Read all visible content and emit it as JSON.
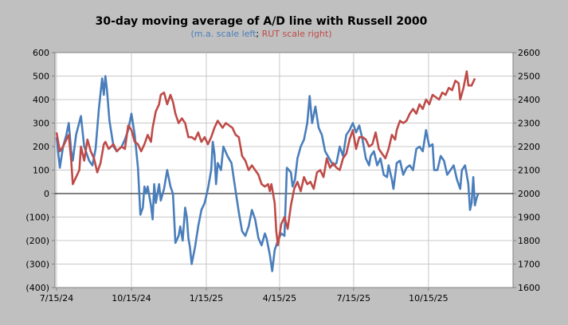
{
  "chart_data": {
    "type": "line",
    "title": "30-day moving average of A/D line with Russell 2000",
    "subtitle_parts": [
      {
        "text": "(",
        "color": "#4a7ebb"
      },
      {
        "text": "m.a. scale left",
        "color": "#4a7ebb"
      },
      {
        "text": "; ",
        "color": "#000000"
      },
      {
        "text": "RUT scale right",
        "color": "#be4b48"
      },
      {
        "text": ")",
        "color": "#be4b48"
      }
    ],
    "x_ticks": [
      "7/15/24",
      "10/15/24",
      "1/15/25",
      "4/15/25",
      "7/15/25",
      "10/15/25"
    ],
    "x_tick_pos": [
      0,
      92,
      184,
      274,
      365,
      457
    ],
    "x_range": [
      0,
      509
    ],
    "y_left": {
      "range": [
        -400,
        600
      ],
      "ticks": [
        600,
        500,
        400,
        300,
        200,
        100,
        0,
        -100,
        -200,
        -300,
        -400
      ],
      "tick_labels": [
        "600",
        "500",
        "400",
        "300",
        "200",
        "100",
        "0",
        "(100)",
        "(200)",
        "(300)",
        "(400)"
      ]
    },
    "y_right": {
      "range": [
        1600,
        2600
      ],
      "ticks": [
        2600,
        2500,
        2400,
        2300,
        2200,
        2100,
        2000,
        1900,
        1800,
        1700,
        1600
      ],
      "tick_labels": [
        "2600",
        "2500",
        "2400",
        "2300",
        "2200",
        "2100",
        "2000",
        "1900",
        "1800",
        "1700",
        "1600"
      ]
    },
    "grid": true,
    "series": [
      {
        "axis": "left",
        "color": "#4a7ebb",
        "points": [
          [
            0,
            240
          ],
          [
            4,
            110
          ],
          [
            8,
            200
          ],
          [
            12,
            250
          ],
          [
            15,
            300
          ],
          [
            18,
            180
          ],
          [
            20,
            140
          ],
          [
            24,
            250
          ],
          [
            30,
            330
          ],
          [
            34,
            200
          ],
          [
            40,
            140
          ],
          [
            44,
            120
          ],
          [
            48,
            190
          ],
          [
            52,
            360
          ],
          [
            56,
            490
          ],
          [
            58,
            420
          ],
          [
            60,
            500
          ],
          [
            62,
            440
          ],
          [
            65,
            310
          ],
          [
            70,
            200
          ],
          [
            74,
            180
          ],
          [
            80,
            200
          ],
          [
            84,
            230
          ],
          [
            88,
            270
          ],
          [
            92,
            340
          ],
          [
            96,
            250
          ],
          [
            100,
            110
          ],
          [
            103,
            -90
          ],
          [
            106,
            -60
          ],
          [
            108,
            30
          ],
          [
            110,
            0
          ],
          [
            112,
            30
          ],
          [
            116,
            -50
          ],
          [
            118,
            -110
          ],
          [
            120,
            40
          ],
          [
            122,
            -40
          ],
          [
            126,
            40
          ],
          [
            128,
            -30
          ],
          [
            132,
            20
          ],
          [
            136,
            100
          ],
          [
            140,
            30
          ],
          [
            143,
            0
          ],
          [
            146,
            -210
          ],
          [
            150,
            -180
          ],
          [
            152,
            -140
          ],
          [
            155,
            -200
          ],
          [
            158,
            -60
          ],
          [
            160,
            -100
          ],
          [
            162,
            -190
          ],
          [
            164,
            -230
          ],
          [
            166,
            -300
          ],
          [
            170,
            -230
          ],
          [
            174,
            -140
          ],
          [
            178,
            -70
          ],
          [
            182,
            -40
          ],
          [
            186,
            20
          ],
          [
            190,
            100
          ],
          [
            192,
            220
          ],
          [
            194,
            170
          ],
          [
            196,
            40
          ],
          [
            198,
            130
          ],
          [
            202,
            100
          ],
          [
            205,
            200
          ],
          [
            210,
            160
          ],
          [
            215,
            130
          ],
          [
            220,
            10
          ],
          [
            224,
            -80
          ],
          [
            228,
            -160
          ],
          [
            232,
            -180
          ],
          [
            236,
            -140
          ],
          [
            240,
            -70
          ],
          [
            244,
            -110
          ],
          [
            248,
            -190
          ],
          [
            252,
            -220
          ],
          [
            256,
            -170
          ],
          [
            258,
            -190
          ],
          [
            262,
            -260
          ],
          [
            265,
            -330
          ],
          [
            268,
            -240
          ],
          [
            272,
            -200
          ],
          [
            276,
            -170
          ],
          [
            280,
            -180
          ],
          [
            283,
            110
          ],
          [
            288,
            90
          ],
          [
            290,
            30
          ],
          [
            293,
            60
          ],
          [
            296,
            150
          ],
          [
            300,
            200
          ],
          [
            304,
            230
          ],
          [
            308,
            300
          ],
          [
            311,
            415
          ],
          [
            314,
            300
          ],
          [
            318,
            370
          ],
          [
            322,
            280
          ],
          [
            326,
            250
          ],
          [
            330,
            180
          ],
          [
            335,
            150
          ],
          [
            340,
            120
          ],
          [
            344,
            130
          ],
          [
            348,
            200
          ],
          [
            352,
            160
          ],
          [
            356,
            250
          ],
          [
            360,
            270
          ],
          [
            364,
            300
          ],
          [
            368,
            260
          ],
          [
            372,
            290
          ],
          [
            376,
            230
          ],
          [
            380,
            150
          ],
          [
            384,
            120
          ],
          [
            386,
            160
          ],
          [
            390,
            180
          ],
          [
            394,
            120
          ],
          [
            398,
            150
          ],
          [
            402,
            80
          ],
          [
            406,
            70
          ],
          [
            408,
            120
          ],
          [
            412,
            60
          ],
          [
            414,
            20
          ],
          [
            418,
            130
          ],
          [
            422,
            140
          ],
          [
            426,
            80
          ],
          [
            430,
            110
          ],
          [
            434,
            120
          ],
          [
            438,
            100
          ],
          [
            442,
            190
          ],
          [
            446,
            200
          ],
          [
            450,
            180
          ],
          [
            454,
            270
          ],
          [
            458,
            200
          ],
          [
            462,
            210
          ],
          [
            464,
            100
          ],
          [
            468,
            100
          ],
          [
            472,
            160
          ],
          [
            476,
            140
          ],
          [
            480,
            80
          ],
          [
            484,
            100
          ],
          [
            488,
            120
          ],
          [
            492,
            60
          ],
          [
            496,
            20
          ],
          [
            498,
            100
          ],
          [
            502,
            120
          ],
          [
            504,
            80
          ],
          [
            506,
            40
          ],
          [
            508,
            -70
          ],
          [
            510,
            -40
          ],
          [
            512,
            70
          ],
          [
            514,
            -50
          ],
          [
            516,
            -20
          ],
          [
            518,
            0
          ]
        ]
      },
      {
        "axis": "right",
        "color": "#be4b48",
        "points": [
          [
            0,
            2260
          ],
          [
            4,
            2180
          ],
          [
            8,
            2200
          ],
          [
            12,
            2230
          ],
          [
            15,
            2250
          ],
          [
            18,
            2140
          ],
          [
            20,
            2040
          ],
          [
            24,
            2070
          ],
          [
            28,
            2100
          ],
          [
            30,
            2200
          ],
          [
            34,
            2140
          ],
          [
            38,
            2230
          ],
          [
            42,
            2180
          ],
          [
            46,
            2150
          ],
          [
            50,
            2090
          ],
          [
            54,
            2130
          ],
          [
            58,
            2210
          ],
          [
            60,
            2220
          ],
          [
            64,
            2190
          ],
          [
            70,
            2210
          ],
          [
            74,
            2180
          ],
          [
            80,
            2200
          ],
          [
            84,
            2190
          ],
          [
            88,
            2290
          ],
          [
            92,
            2270
          ],
          [
            96,
            2220
          ],
          [
            100,
            2210
          ],
          [
            104,
            2180
          ],
          [
            108,
            2210
          ],
          [
            112,
            2250
          ],
          [
            116,
            2220
          ],
          [
            118,
            2280
          ],
          [
            122,
            2350
          ],
          [
            126,
            2380
          ],
          [
            128,
            2420
          ],
          [
            132,
            2430
          ],
          [
            136,
            2380
          ],
          [
            140,
            2420
          ],
          [
            143,
            2390
          ],
          [
            146,
            2340
          ],
          [
            150,
            2300
          ],
          [
            154,
            2320
          ],
          [
            158,
            2300
          ],
          [
            162,
            2240
          ],
          [
            166,
            2240
          ],
          [
            170,
            2230
          ],
          [
            174,
            2260
          ],
          [
            178,
            2220
          ],
          [
            182,
            2240
          ],
          [
            186,
            2210
          ],
          [
            190,
            2240
          ],
          [
            194,
            2280
          ],
          [
            198,
            2310
          ],
          [
            200,
            2300
          ],
          [
            204,
            2280
          ],
          [
            208,
            2300
          ],
          [
            212,
            2290
          ],
          [
            216,
            2280
          ],
          [
            220,
            2250
          ],
          [
            224,
            2240
          ],
          [
            228,
            2160
          ],
          [
            232,
            2140
          ],
          [
            236,
            2100
          ],
          [
            240,
            2120
          ],
          [
            244,
            2100
          ],
          [
            248,
            2080
          ],
          [
            252,
            2040
          ],
          [
            256,
            2030
          ],
          [
            260,
            2040
          ],
          [
            262,
            2010
          ],
          [
            264,
            2040
          ],
          [
            268,
            1960
          ],
          [
            270,
            1840
          ],
          [
            272,
            1780
          ],
          [
            276,
            1870
          ],
          [
            280,
            1900
          ],
          [
            284,
            1850
          ],
          [
            288,
            1950
          ],
          [
            292,
            2020
          ],
          [
            296,
            2050
          ],
          [
            300,
            2010
          ],
          [
            304,
            2070
          ],
          [
            308,
            2040
          ],
          [
            312,
            2050
          ],
          [
            316,
            2020
          ],
          [
            320,
            2090
          ],
          [
            324,
            2100
          ],
          [
            328,
            2070
          ],
          [
            332,
            2150
          ],
          [
            336,
            2110
          ],
          [
            340,
            2130
          ],
          [
            344,
            2110
          ],
          [
            348,
            2100
          ],
          [
            352,
            2150
          ],
          [
            356,
            2170
          ],
          [
            360,
            2230
          ],
          [
            364,
            2270
          ],
          [
            368,
            2190
          ],
          [
            372,
            2240
          ],
          [
            376,
            2240
          ],
          [
            380,
            2230
          ],
          [
            384,
            2200
          ],
          [
            388,
            2210
          ],
          [
            392,
            2260
          ],
          [
            396,
            2190
          ],
          [
            400,
            2170
          ],
          [
            404,
            2150
          ],
          [
            408,
            2190
          ],
          [
            412,
            2250
          ],
          [
            416,
            2230
          ],
          [
            418,
            2270
          ],
          [
            422,
            2310
          ],
          [
            426,
            2300
          ],
          [
            430,
            2310
          ],
          [
            434,
            2340
          ],
          [
            438,
            2360
          ],
          [
            442,
            2340
          ],
          [
            446,
            2380
          ],
          [
            450,
            2360
          ],
          [
            454,
            2400
          ],
          [
            458,
            2380
          ],
          [
            462,
            2420
          ],
          [
            466,
            2410
          ],
          [
            470,
            2400
          ],
          [
            474,
            2430
          ],
          [
            478,
            2420
          ],
          [
            482,
            2450
          ],
          [
            486,
            2440
          ],
          [
            490,
            2480
          ],
          [
            494,
            2470
          ],
          [
            496,
            2400
          ],
          [
            500,
            2450
          ],
          [
            504,
            2520
          ],
          [
            506,
            2460
          ],
          [
            510,
            2460
          ],
          [
            514,
            2490
          ]
        ]
      }
    ]
  }
}
